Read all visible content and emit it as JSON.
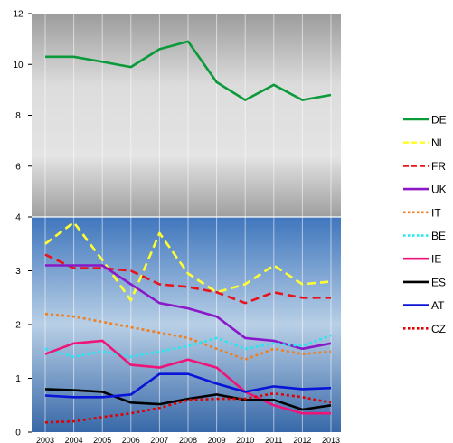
{
  "chart_data": {
    "type": "line",
    "x": [
      "2003",
      "2004",
      "2005",
      "2006",
      "2007",
      "2008",
      "2009",
      "2010",
      "2011",
      "2012",
      "2013"
    ],
    "panels": [
      {
        "name": "upper",
        "yticks": [
          4,
          6,
          8,
          10,
          12
        ],
        "ylim": [
          4,
          12
        ],
        "tick_labels": [
          "4",
          "6",
          "8",
          "10",
          "12"
        ]
      },
      {
        "name": "lower",
        "yticks": [
          0,
          1,
          2,
          3
        ],
        "ylim": [
          0,
          4
        ],
        "tick_labels": [
          "0",
          "1",
          "2",
          "3"
        ]
      }
    ],
    "series": [
      {
        "name": "DE",
        "panel": "upper",
        "color": "#0a9a3a",
        "dash": "solid",
        "values": [
          10.3,
          10.3,
          10.1,
          9.9,
          10.6,
          10.9,
          9.3,
          8.6,
          9.2,
          8.6,
          8.8
        ]
      },
      {
        "name": "NL",
        "panel": "lower",
        "color": "#ffff33",
        "dash": "dashed",
        "values": [
          3.5,
          3.9,
          3.2,
          2.45,
          3.7,
          2.95,
          2.6,
          2.75,
          3.1,
          2.75,
          2.8
        ]
      },
      {
        "name": "FR",
        "panel": "lower",
        "color": "#e8141c",
        "dash": "dashed",
        "values": [
          3.3,
          3.05,
          3.05,
          3.0,
          2.75,
          2.7,
          2.6,
          2.4,
          2.6,
          2.5,
          2.5
        ]
      },
      {
        "name": "UK",
        "panel": "lower",
        "color": "#8a18c8",
        "dash": "solid",
        "values": [
          3.1,
          3.1,
          3.1,
          2.75,
          2.4,
          2.3,
          2.15,
          1.75,
          1.7,
          1.55,
          1.65
        ]
      },
      {
        "name": "IT",
        "panel": "lower",
        "color": "#f07f20",
        "dash": "dotted",
        "values": [
          2.2,
          2.15,
          2.05,
          1.95,
          1.85,
          1.75,
          1.55,
          1.35,
          1.55,
          1.45,
          1.5
        ]
      },
      {
        "name": "BE",
        "panel": "lower",
        "color": "#22e8f0",
        "dash": "dotted",
        "values": [
          1.55,
          1.4,
          1.5,
          1.4,
          1.5,
          1.6,
          1.75,
          1.55,
          1.65,
          1.6,
          1.8
        ]
      },
      {
        "name": "IE",
        "panel": "lower",
        "color": "#f01478",
        "dash": "solid",
        "values": [
          1.45,
          1.65,
          1.7,
          1.25,
          1.2,
          1.35,
          1.2,
          0.75,
          0.5,
          0.35,
          0.35
        ]
      },
      {
        "name": "ES",
        "panel": "lower",
        "color": "#000000",
        "dash": "solid",
        "values": [
          0.8,
          0.78,
          0.75,
          0.55,
          0.52,
          0.62,
          0.7,
          0.6,
          0.6,
          0.42,
          0.5
        ]
      },
      {
        "name": "AT",
        "panel": "lower",
        "color": "#0a14d8",
        "dash": "solid",
        "values": [
          0.68,
          0.65,
          0.65,
          0.7,
          1.08,
          1.08,
          0.9,
          0.75,
          0.85,
          0.8,
          0.82
        ]
      },
      {
        "name": "CZ",
        "panel": "lower",
        "color": "#e00000",
        "dash": "dotted",
        "values": [
          0.18,
          0.2,
          0.28,
          0.35,
          0.45,
          0.6,
          0.62,
          0.62,
          0.72,
          0.65,
          0.55
        ]
      }
    ],
    "legend": "right",
    "grid": "vertical",
    "title": "",
    "xlabel": "",
    "ylabel": ""
  }
}
